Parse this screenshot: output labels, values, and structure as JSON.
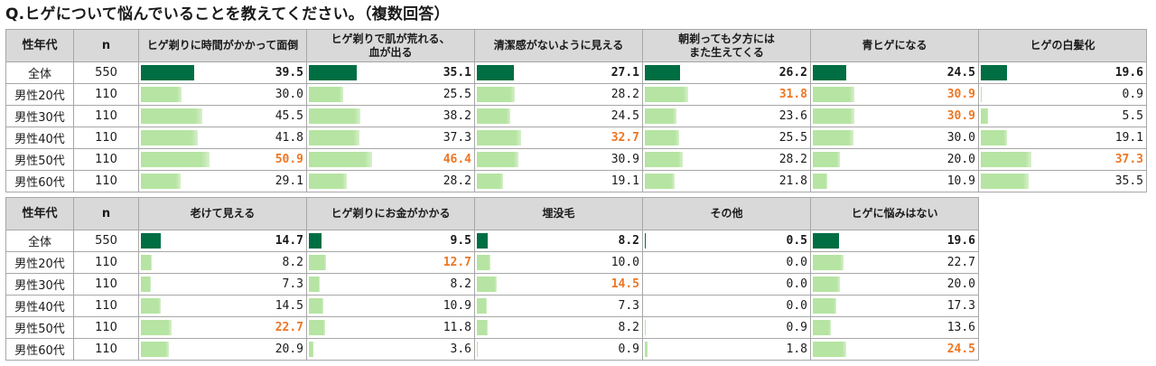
{
  "title": "Q.ヒゲについて悩んでいることを教えてください。（複数回答）",
  "chart_data": {
    "type": "table",
    "title": "Q.ヒゲについて悩んでいることを教えてください。（複数回答）",
    "row_header": "性年代",
    "n_header": "n",
    "rows": [
      "全体",
      "男性20代",
      "男性30代",
      "男性40代",
      "男性50代",
      "男性60代"
    ],
    "n": [
      550,
      110,
      110,
      110,
      110,
      110
    ],
    "colors": {
      "total_bar": "#006e43",
      "segment_bar": "#b6e4a2",
      "highlight_text": "#ee7623",
      "header_bg": "#d9d9d9"
    },
    "tables": [
      {
        "series": [
          {
            "name": "ヒゲ剃りに時間がかかって面倒",
            "values": [
              "39.5",
              "30.0",
              "45.5",
              "41.8",
              "50.9",
              "29.1"
            ],
            "highlight": [
              4
            ]
          },
          {
            "name": "ヒゲ剃りで肌が荒れる、\n血が出る",
            "values": [
              "35.1",
              "25.5",
              "38.2",
              "37.3",
              "46.4",
              "28.2"
            ],
            "highlight": [
              4
            ]
          },
          {
            "name": "清潔感がないように見える",
            "values": [
              "27.1",
              "28.2",
              "24.5",
              "32.7",
              "30.9",
              "19.1"
            ],
            "highlight": [
              3
            ]
          },
          {
            "name": "朝剃っても夕方には\nまた生えてくる",
            "values": [
              "26.2",
              "31.8",
              "23.6",
              "25.5",
              "28.2",
              "21.8"
            ],
            "highlight": [
              1
            ]
          },
          {
            "name": "青ヒゲになる",
            "values": [
              "24.5",
              "30.9",
              "30.9",
              "30.0",
              "20.0",
              "10.9"
            ],
            "highlight": [
              1,
              2
            ]
          },
          {
            "name": "ヒゲの白髪化",
            "values": [
              "19.6",
              "0.9",
              "5.5",
              "19.1",
              "37.3",
              "35.5"
            ],
            "highlight": [
              4
            ]
          }
        ]
      },
      {
        "series": [
          {
            "name": "老けて見える",
            "values": [
              "14.7",
              "8.2",
              "7.3",
              "14.5",
              "22.7",
              "20.9"
            ],
            "highlight": [
              4
            ]
          },
          {
            "name": "ヒゲ剃りにお金がかかる",
            "values": [
              "9.5",
              "12.7",
              "8.2",
              "10.9",
              "11.8",
              "3.6"
            ],
            "highlight": [
              1
            ]
          },
          {
            "name": "埋没毛",
            "values": [
              "8.2",
              "10.0",
              "14.5",
              "7.3",
              "8.2",
              "0.9"
            ],
            "highlight": [
              2
            ]
          },
          {
            "name": "その他",
            "values": [
              "0.5",
              "0.0",
              "0.0",
              "0.0",
              "0.9",
              "1.8"
            ],
            "highlight": []
          },
          {
            "name": "ヒゲに悩みはない",
            "values": [
              "19.6",
              "22.7",
              "20.0",
              "17.3",
              "13.6",
              "24.5"
            ],
            "highlight": [
              5
            ]
          }
        ]
      }
    ]
  }
}
